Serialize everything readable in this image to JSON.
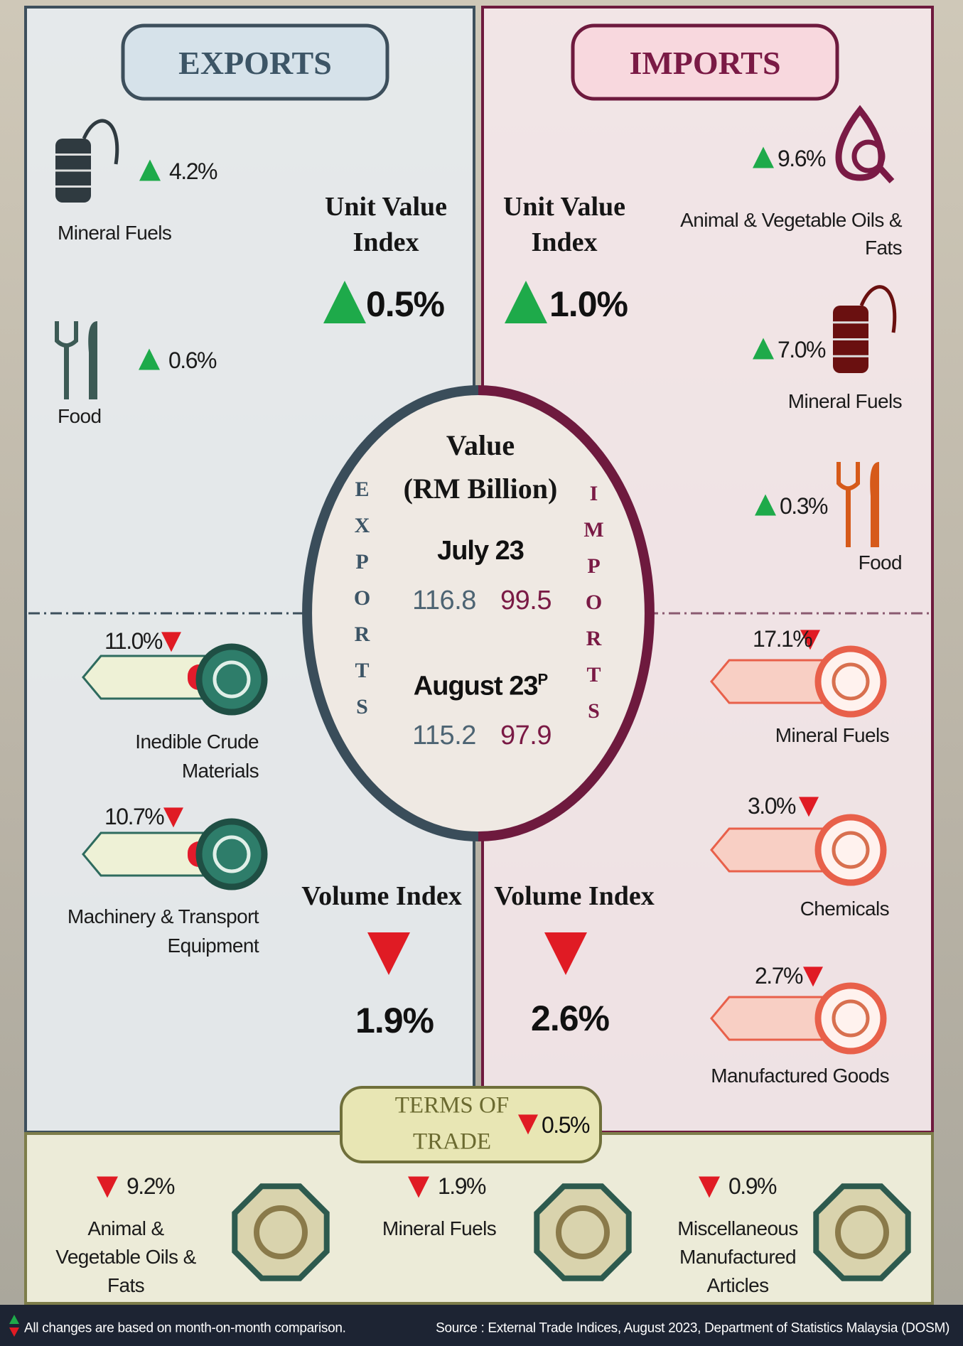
{
  "exports": {
    "title": "EXPORTS",
    "unit_value_index": {
      "label": [
        "Unit Value",
        "Index"
      ],
      "change": "0.5%"
    },
    "increases": [
      {
        "label": [
          "Mineral Fuels"
        ],
        "change": "4.2%"
      },
      {
        "label": [
          "Food"
        ],
        "change": "0.6%"
      }
    ],
    "decreases": [
      {
        "label": [
          "Inedible Crude",
          "Materials"
        ],
        "change": "11.0%"
      },
      {
        "label": [
          "Machinery & Transport",
          "Equipment"
        ],
        "change": "10.7%"
      }
    ],
    "volume_index": {
      "label": "Volume Index",
      "change": "1.9%"
    }
  },
  "imports": {
    "title": "IMPORTS",
    "unit_value_index": {
      "label": [
        "Unit Value",
        "Index"
      ],
      "change": "1.0%"
    },
    "increases": [
      {
        "label": [
          "Animal & Vegetable Oils &",
          "Fats"
        ],
        "change": "9.6%"
      },
      {
        "label": [
          "Mineral Fuels"
        ],
        "change": "7.0%"
      },
      {
        "label": [
          "Food"
        ],
        "change": "0.3%"
      }
    ],
    "decreases": [
      {
        "label": [
          "Mineral Fuels"
        ],
        "change": "17.1%"
      },
      {
        "label": [
          "Chemicals"
        ],
        "change": "3.0%"
      },
      {
        "label": [
          "Manufactured Goods"
        ],
        "change": "2.7%"
      }
    ],
    "volume_index": {
      "label": "Volume Index",
      "change": "2.6%"
    }
  },
  "value": {
    "title": "Value",
    "unit": "(RM Billion)",
    "exports_label": "EXPORTS",
    "imports_label": "IMPORTS",
    "periods": [
      {
        "label": "July 23",
        "exports": "116.8",
        "imports": "99.5"
      },
      {
        "label": "August 23",
        "note": "P",
        "exports": "115.2",
        "imports": "97.9"
      }
    ]
  },
  "terms_of_trade": {
    "label": [
      "TERMS OF",
      "TRADE"
    ],
    "change": "0.5%",
    "items": [
      {
        "label": [
          "Animal &",
          "Vegetable Oils &",
          "Fats"
        ],
        "change": "9.2%"
      },
      {
        "label": [
          "Mineral Fuels"
        ],
        "change": "1.9%"
      },
      {
        "label": [
          "Miscellaneous",
          "Manufactured",
          "Articles"
        ],
        "change": "0.9%"
      }
    ]
  },
  "footer": {
    "note": "All changes are based on month-on-month comparison.",
    "source": "Source : External Trade Indices, August 2023, Department of Statistics Malaysia (DOSM)"
  }
}
